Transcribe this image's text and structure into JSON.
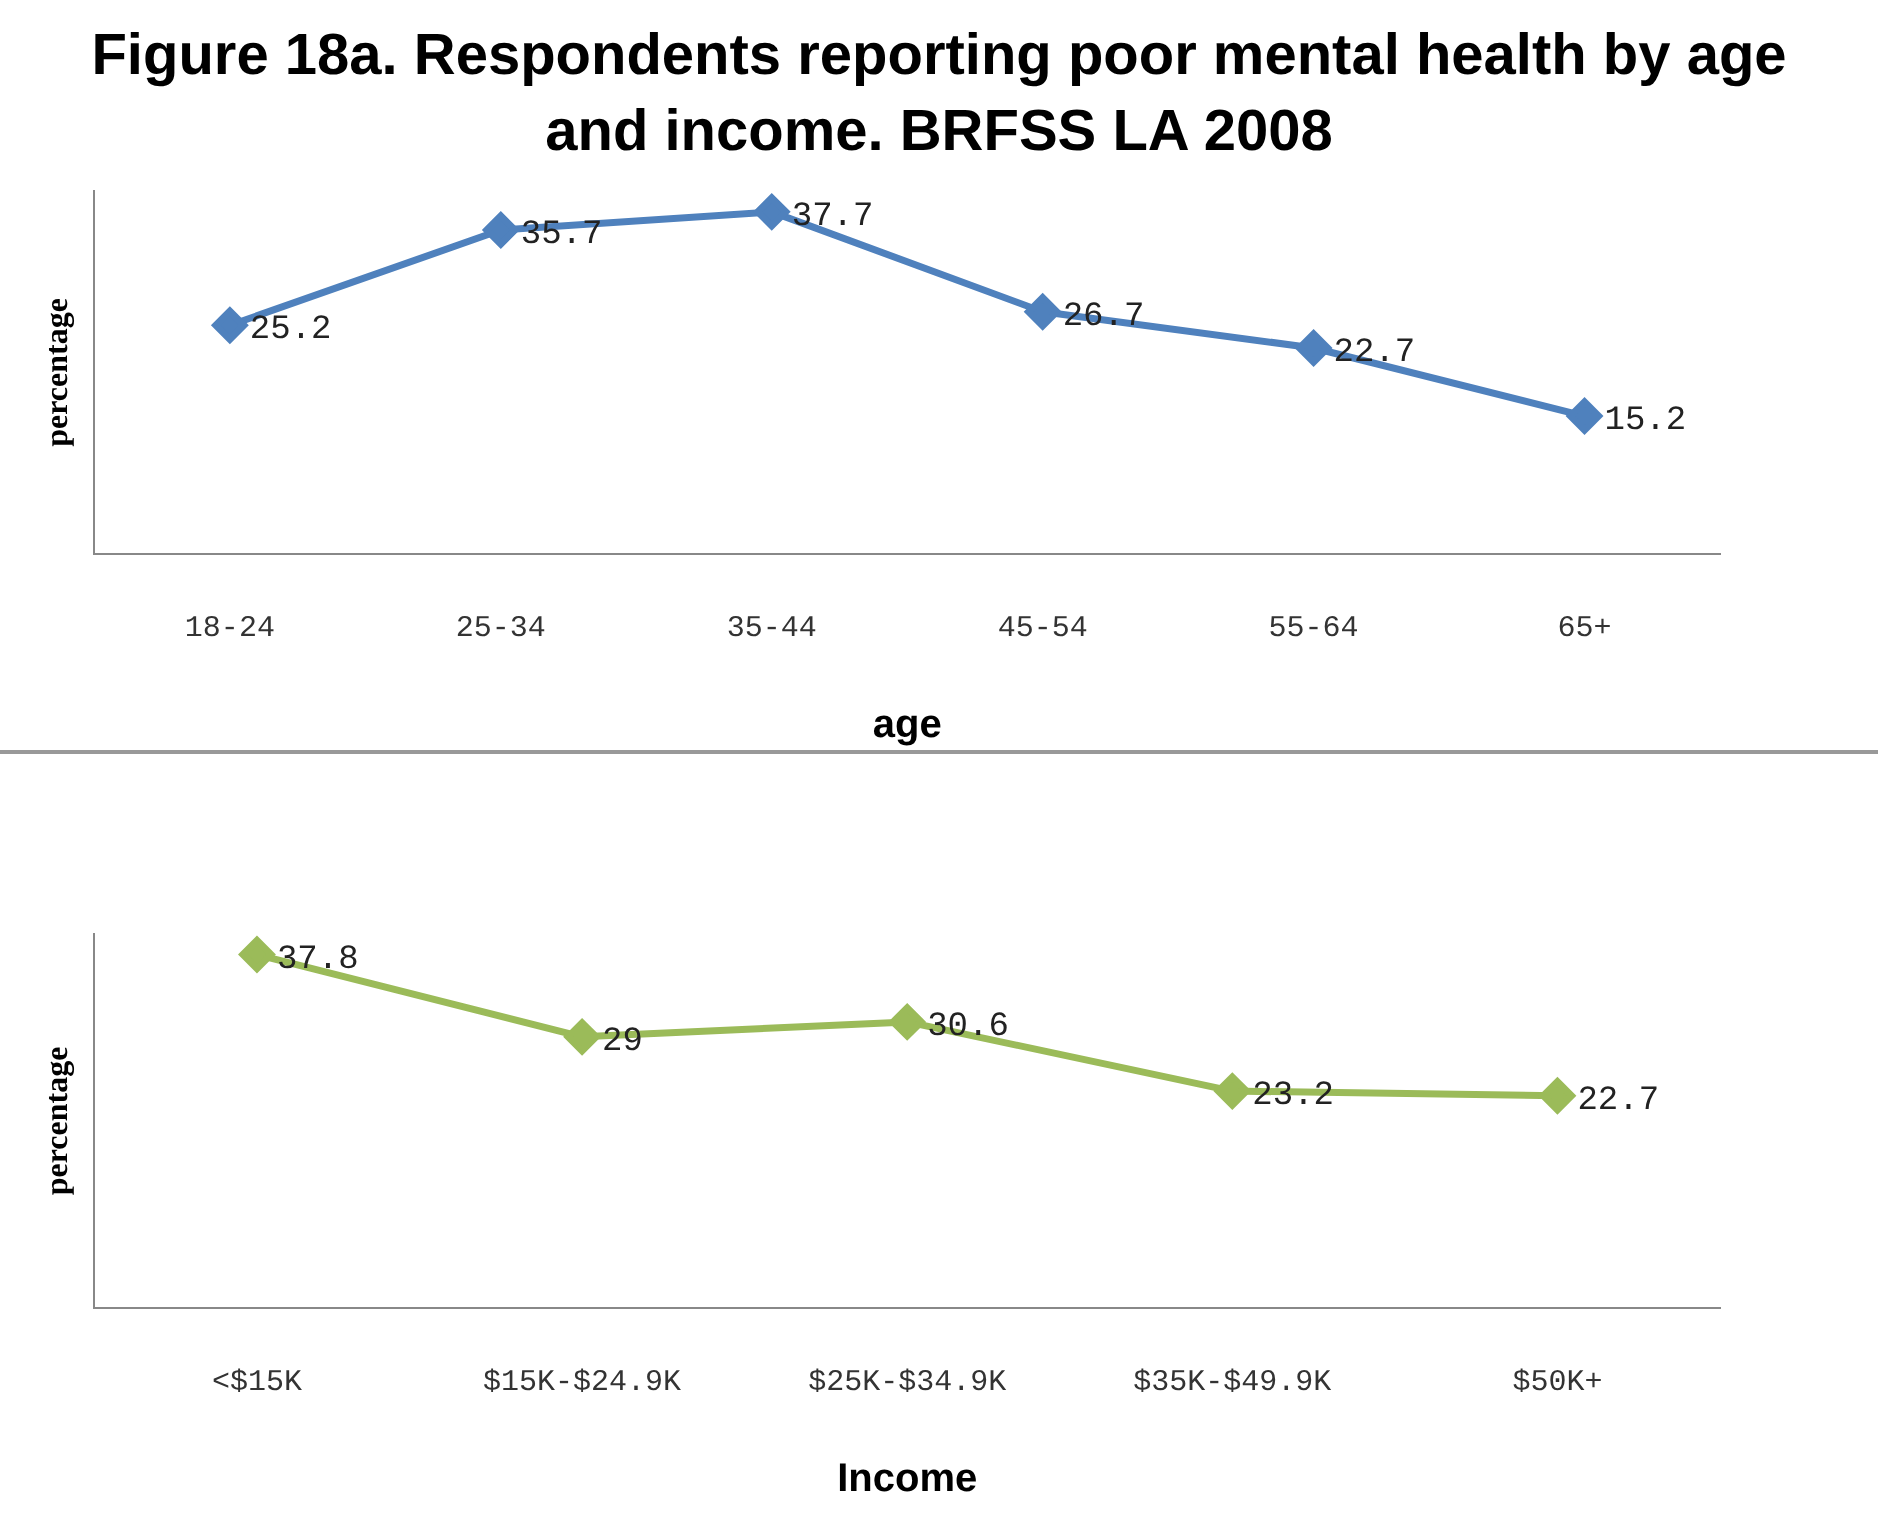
{
  "chart_data": [
    {
      "type": "line",
      "title": "Figure 18a.  Respondents reporting poor mental health by age and income.  BRFSS LA  2008",
      "xlabel": "age",
      "ylabel": "percentage",
      "categories": [
        "18-24",
        "25-34",
        "35-44",
        "45-54",
        "55-64",
        "65+"
      ],
      "series": [
        {
          "color": "#4f81bd",
          "values": [
            25.2,
            35.7,
            37.7,
            26.7,
            22.7,
            15.2
          ]
        }
      ],
      "data_labels": true,
      "marker": "diamond",
      "line_style": "solid",
      "grid": false,
      "legend": false,
      "tick_labels": "x"
    },
    {
      "type": "line",
      "xlabel": "Income",
      "ylabel": "percentage",
      "categories": [
        "<$15K",
        "$15K-$24.9K",
        "$25K-$34.9K",
        "$35K-$49.9K",
        "$50K+"
      ],
      "series": [
        {
          "color": "#9bbb59",
          "values": [
            37.8,
            29,
            30.6,
            23.2,
            22.7
          ]
        }
      ],
      "data_labels": true,
      "marker": "diamond",
      "line_style": "solid",
      "grid": false,
      "legend": false,
      "tick_labels": "x"
    }
  ]
}
